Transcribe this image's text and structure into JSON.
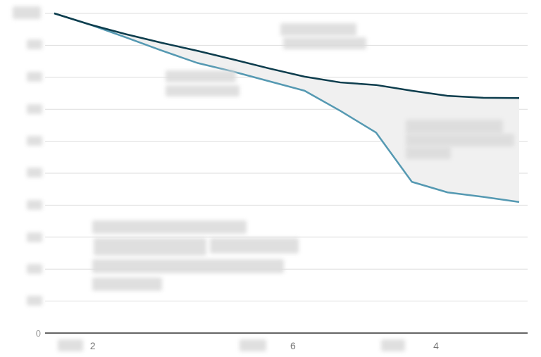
{
  "chart_data": {
    "type": "line",
    "title": "",
    "xlabel": "",
    "ylabel": "",
    "x": [
      0,
      1,
      2,
      3,
      4,
      5,
      6,
      7,
      8,
      9,
      10,
      11,
      12,
      13
    ],
    "x_tick_labels": [
      {
        "x": 0.8,
        "label": "2"
      },
      {
        "x": 6.4,
        "label": "6"
      },
      {
        "x": 10.4,
        "label": "4"
      }
    ],
    "y_tick_labels": [
      "0",
      "",
      "",
      "",
      "",
      "",
      "",
      "",
      "",
      "",
      ""
    ],
    "ylim": [
      0,
      10
    ],
    "series": [
      {
        "name": "",
        "color": "#0d3d4d",
        "values": [
          10.0,
          9.65,
          9.35,
          9.08,
          8.83,
          8.56,
          8.28,
          8.02,
          7.84,
          7.76,
          7.58,
          7.42,
          7.36,
          7.35
        ]
      },
      {
        "name": "",
        "color": "#5599b2",
        "values": [
          10.0,
          9.65,
          9.25,
          8.84,
          8.45,
          8.18,
          7.88,
          7.58,
          6.95,
          6.27,
          4.73,
          4.4,
          4.26,
          4.1
        ]
      }
    ],
    "fill_between": {
      "color": "#f0f0f0"
    },
    "grid": true,
    "annotations": []
  }
}
